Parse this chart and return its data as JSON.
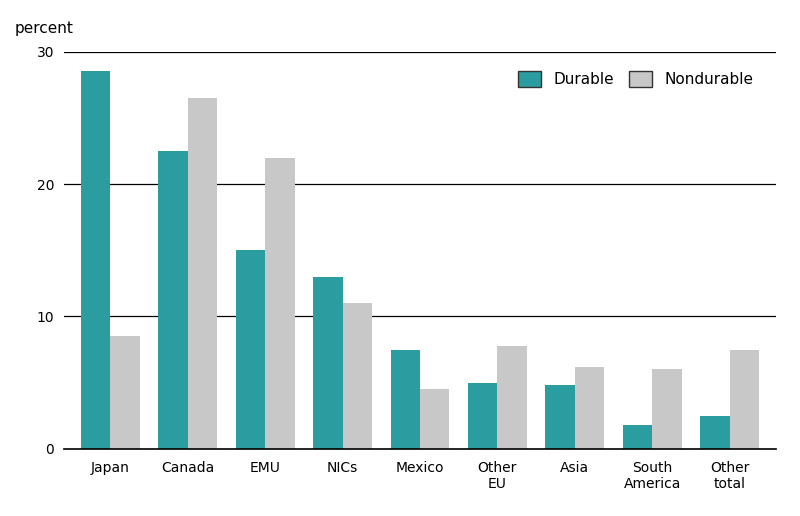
{
  "categories": [
    "Japan",
    "Canada",
    "EMU",
    "NICs",
    "Mexico",
    "Other\nEU",
    "Asia",
    "South\nAmerica",
    "Other\ntotal"
  ],
  "durable": [
    28.5,
    22.5,
    15.0,
    13.0,
    7.5,
    5.0,
    4.8,
    1.8,
    2.5
  ],
  "nondurable": [
    8.5,
    26.5,
    22.0,
    11.0,
    4.5,
    7.8,
    6.2,
    6.0,
    7.5
  ],
  "durable_color": "#2b9da0",
  "nondurable_color": "#c8c8c8",
  "ylabel": "percent",
  "ylim": [
    0,
    30
  ],
  "yticks": [
    0,
    10,
    20,
    30
  ],
  "bar_width": 0.38,
  "legend_labels": [
    "Durable",
    "Nondurable"
  ],
  "background_color": "#ffffff",
  "grid_ticks": [
    10,
    20,
    30
  ]
}
